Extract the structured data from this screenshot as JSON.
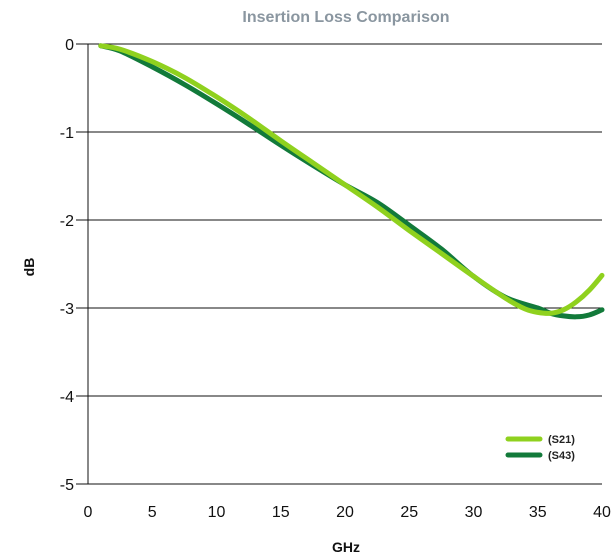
{
  "chart_data": {
    "type": "line",
    "title": "Insertion Loss Comparison",
    "xlabel": "GHz",
    "ylabel": "dB",
    "xlim": [
      0,
      40
    ],
    "ylim": [
      -5,
      0
    ],
    "x_ticks": [
      0,
      5,
      10,
      15,
      20,
      25,
      30,
      35,
      40
    ],
    "y_ticks": [
      0,
      -1,
      -2,
      -3,
      -4,
      -5
    ],
    "grid": "horizontal",
    "legend_position": "bottom-right",
    "series": [
      {
        "name": "(S21)",
        "color": "#8fd11e",
        "x": [
          1,
          2.5,
          5,
          7.5,
          10,
          12.5,
          15,
          17.5,
          20,
          22.5,
          25,
          27.5,
          30,
          32.5,
          34,
          35,
          36,
          37,
          38,
          39,
          40
        ],
        "y": [
          -0.02,
          -0.06,
          -0.2,
          -0.38,
          -0.6,
          -0.84,
          -1.1,
          -1.35,
          -1.6,
          -1.85,
          -2.12,
          -2.38,
          -2.64,
          -2.89,
          -3.01,
          -3.05,
          -3.06,
          -3.02,
          -2.93,
          -2.8,
          -2.63
        ]
      },
      {
        "name": "(S43)",
        "color": "#127a3a",
        "x": [
          1,
          2.5,
          5,
          7.5,
          10,
          12.5,
          15,
          17.5,
          20,
          22.5,
          25,
          27.5,
          30,
          32.5,
          35,
          36,
          37,
          38,
          39,
          40
        ],
        "y": [
          -0.02,
          -0.08,
          -0.26,
          -0.46,
          -0.68,
          -0.91,
          -1.15,
          -1.38,
          -1.6,
          -1.8,
          -2.06,
          -2.33,
          -2.64,
          -2.88,
          -3.0,
          -3.06,
          -3.09,
          -3.1,
          -3.08,
          -3.02
        ]
      }
    ]
  }
}
